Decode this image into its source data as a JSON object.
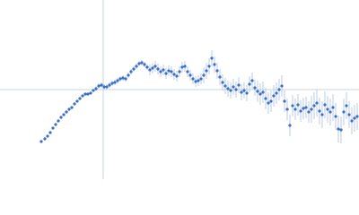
{
  "chart_data": {
    "type": "scatter",
    "xlim": [
      0,
      400
    ],
    "ylim": [
      0,
      200
    ],
    "reference_lines": {
      "x": 115,
      "y": 100
    },
    "color": "#3a6fc4",
    "error_color": "#aabfe2",
    "reference_color": "#c9d6ea",
    "x": [
      46,
      50,
      53,
      56,
      59,
      62,
      65,
      68,
      71,
      74,
      77,
      80,
      83,
      86,
      89,
      92,
      95,
      98,
      101,
      104,
      107,
      110,
      113,
      116,
      119,
      122,
      125,
      128,
      131,
      134,
      137,
      140,
      143,
      146,
      149,
      152,
      155,
      158,
      161,
      164,
      167,
      170,
      173,
      176,
      179,
      182,
      185,
      188,
      191,
      194,
      197,
      200,
      203,
      206,
      209,
      212,
      215,
      218,
      221,
      224,
      227,
      230,
      233,
      236,
      239,
      242,
      245,
      248,
      251,
      254,
      257,
      260,
      263,
      266,
      269,
      272,
      275,
      278,
      281,
      284,
      287,
      290,
      293,
      296,
      299,
      302,
      305,
      308,
      311,
      314,
      317,
      320,
      323,
      326,
      329,
      332,
      335,
      338,
      341,
      344,
      347,
      350,
      353,
      356,
      359,
      362,
      365,
      368,
      371,
      374,
      377,
      380,
      383,
      386,
      389,
      392,
      395,
      398
    ],
    "values": [
      42,
      45,
      48,
      52,
      57,
      61,
      65,
      69,
      72,
      75,
      78,
      80,
      84,
      87,
      90,
      93,
      95,
      95,
      96,
      99,
      101,
      104,
      105,
      103,
      103,
      105,
      107,
      108,
      110,
      112,
      113,
      112,
      116,
      120,
      123,
      126,
      129,
      130,
      128,
      125,
      122,
      124,
      126,
      123,
      120,
      122,
      118,
      121,
      120,
      117,
      115,
      120,
      125,
      126,
      120,
      116,
      112,
      109,
      110,
      112,
      116,
      121,
      126,
      135,
      128,
      121,
      114,
      108,
      104,
      101,
      99,
      103,
      100,
      105,
      97,
      99,
      96,
      106,
      110,
      102,
      98,
      95,
      97,
      90,
      85,
      87,
      93,
      96,
      100,
      104,
      87,
      78,
      60,
      82,
      78,
      83,
      76,
      79,
      80,
      75,
      78,
      82,
      85,
      76,
      72,
      83,
      78,
      75,
      80,
      70,
      56,
      55,
      75,
      82,
      72,
      65,
      68,
      70
    ],
    "errors": [
      1,
      1,
      1,
      1,
      1,
      1,
      1,
      1,
      1,
      1,
      1,
      1,
      1,
      1,
      1,
      1,
      1,
      1,
      1,
      1,
      3,
      3,
      3,
      3,
      3,
      3,
      3,
      3,
      3,
      3,
      3,
      3,
      3,
      3,
      3,
      3,
      3,
      3,
      3,
      3,
      6,
      6,
      6,
      6,
      6,
      6,
      6,
      6,
      6,
      6,
      6,
      6,
      6,
      6,
      6,
      6,
      6,
      6,
      6,
      6,
      9,
      9,
      9,
      9,
      9,
      9,
      9,
      9,
      9,
      9,
      9,
      9,
      9,
      9,
      9,
      9,
      9,
      9,
      9,
      9,
      12,
      12,
      12,
      12,
      12,
      12,
      12,
      12,
      12,
      12,
      12,
      12,
      12,
      12,
      12,
      12,
      12,
      12,
      12,
      12,
      15,
      15,
      15,
      15,
      15,
      15,
      15,
      15,
      15,
      15,
      15,
      15,
      15,
      15,
      15,
      15,
      15,
      15
    ]
  }
}
